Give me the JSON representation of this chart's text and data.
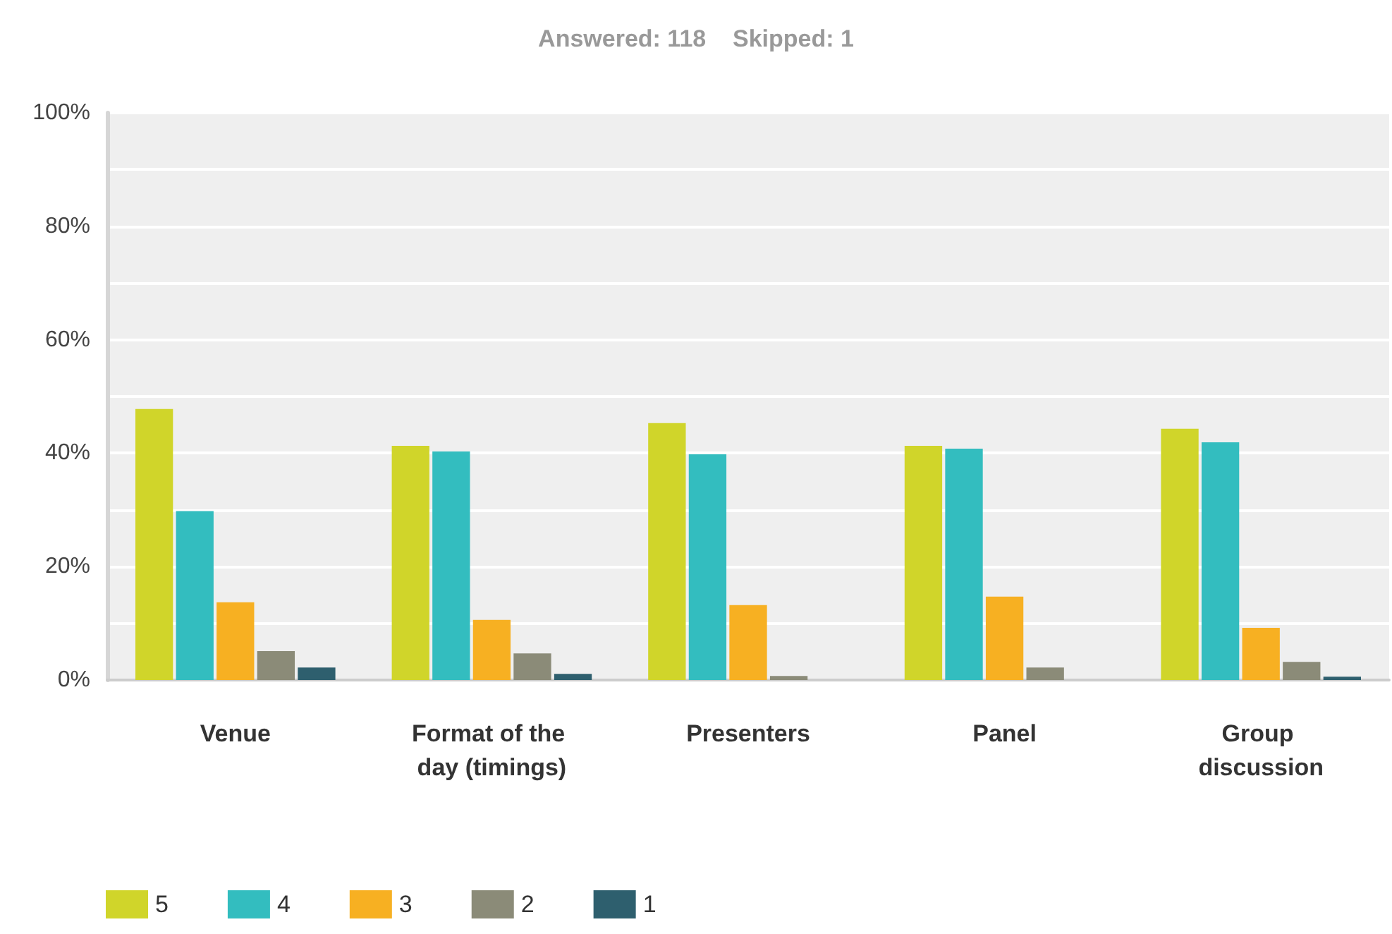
{
  "chart_data": {
    "type": "bar",
    "title": "Answered: 118    Skipped: 1",
    "categories": [
      "Venue",
      "Format of the day (timings)",
      "Presenters",
      "Panel",
      "Group discussion"
    ],
    "series": [
      {
        "name": "5",
        "color": "#d0d52a",
        "values": [
          47.8,
          41.3,
          45.3,
          41.3,
          44.3
        ]
      },
      {
        "name": "4",
        "color": "#33bdbf",
        "values": [
          29.8,
          40.3,
          39.8,
          40.8,
          41.9
        ]
      },
      {
        "name": "3",
        "color": "#f7b022",
        "values": [
          13.7,
          10.6,
          13.2,
          14.7,
          9.2
        ]
      },
      {
        "name": "2",
        "color": "#8b8b78",
        "values": [
          5.1,
          4.7,
          0.7,
          2.2,
          3.2
        ]
      },
      {
        "name": "1",
        "color": "#2e5f6e",
        "values": [
          2.2,
          1.1,
          0,
          0,
          0.6
        ]
      }
    ],
    "ylim": [
      0,
      100
    ],
    "yticks": [
      {
        "value": 0,
        "label": "0%"
      },
      {
        "value": 10,
        "label": null
      },
      {
        "value": 20,
        "label": "20%"
      },
      {
        "value": 30,
        "label": null
      },
      {
        "value": 40,
        "label": "40%"
      },
      {
        "value": 50,
        "label": null
      },
      {
        "value": 60,
        "label": "60%"
      },
      {
        "value": 70,
        "label": null
      },
      {
        "value": 80,
        "label": "80%"
      },
      {
        "value": 90,
        "label": null
      },
      {
        "value": 100,
        "label": "100%"
      }
    ],
    "grid": "y",
    "legend": "bottom left"
  }
}
